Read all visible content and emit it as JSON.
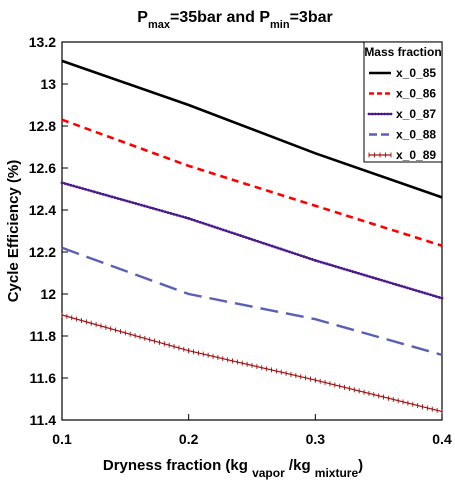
{
  "chart_data": {
    "type": "line",
    "title": {
      "parts": [
        {
          "text": "P",
          "sub": false
        },
        {
          "text": "max",
          "sub": true
        },
        {
          "text": "=35bar and P",
          "sub": false
        },
        {
          "text": "min",
          "sub": true
        },
        {
          "text": "=3bar",
          "sub": false
        }
      ]
    },
    "xlabel": {
      "parts": [
        {
          "text": "Dryness fraction (kg ",
          "sub": false
        },
        {
          "text": "vapor",
          "sub": true
        },
        {
          "text": " /kg ",
          "sub": false
        },
        {
          "text": "mixture",
          "sub": true
        },
        {
          "text": ")",
          "sub": false
        }
      ]
    },
    "ylabel": "Cycle Efficiency (%)",
    "xlim": [
      0.1,
      0.4
    ],
    "ylim": [
      11.4,
      13.2
    ],
    "xticks": [
      {
        "value": 0.1,
        "label": "0.1"
      },
      {
        "value": 0.2,
        "label": "0.2"
      },
      {
        "value": 0.3,
        "label": "0.3"
      },
      {
        "value": 0.4,
        "label": "0.4"
      }
    ],
    "yticks": [
      {
        "value": 11.4,
        "label": "11.4"
      },
      {
        "value": 11.6,
        "label": "11.6"
      },
      {
        "value": 11.8,
        "label": "11.8"
      },
      {
        "value": 12.0,
        "label": "12"
      },
      {
        "value": 12.2,
        "label": "12.2"
      },
      {
        "value": 12.4,
        "label": "12.4"
      },
      {
        "value": 12.6,
        "label": "12.6"
      },
      {
        "value": 12.8,
        "label": "12.8"
      },
      {
        "value": 13.0,
        "label": "13"
      },
      {
        "value": 13.2,
        "label": "13.2"
      }
    ],
    "grid": false,
    "legend": {
      "title": "Mass fraction",
      "placement": "top-right"
    },
    "series": [
      {
        "name": "x_0_85",
        "color": "#000000",
        "style": "solid",
        "x": [
          0.1,
          0.2,
          0.3,
          0.4
        ],
        "y": [
          13.11,
          12.9,
          12.67,
          12.46
        ]
      },
      {
        "name": "x_0_86",
        "color": "#ff0000",
        "style": "dashed",
        "x": [
          0.1,
          0.2,
          0.3,
          0.4
        ],
        "y": [
          12.83,
          12.61,
          12.42,
          12.23
        ]
      },
      {
        "name": "x_0_87",
        "color": "#4b1a8c",
        "style": "dotted-markers",
        "x": [
          0.1,
          0.2,
          0.3,
          0.4
        ],
        "y": [
          12.53,
          12.36,
          12.16,
          11.98
        ]
      },
      {
        "name": "x_0_88",
        "color": "#5b5fb5",
        "style": "long-dash",
        "x": [
          0.1,
          0.2,
          0.3,
          0.4
        ],
        "y": [
          12.22,
          12.0,
          11.88,
          11.71
        ]
      },
      {
        "name": "x_0_89",
        "color": "#a01010",
        "style": "plus-markers",
        "x": [
          0.1,
          0.2,
          0.3,
          0.4
        ],
        "y": [
          11.9,
          11.73,
          11.59,
          11.44
        ]
      }
    ]
  }
}
